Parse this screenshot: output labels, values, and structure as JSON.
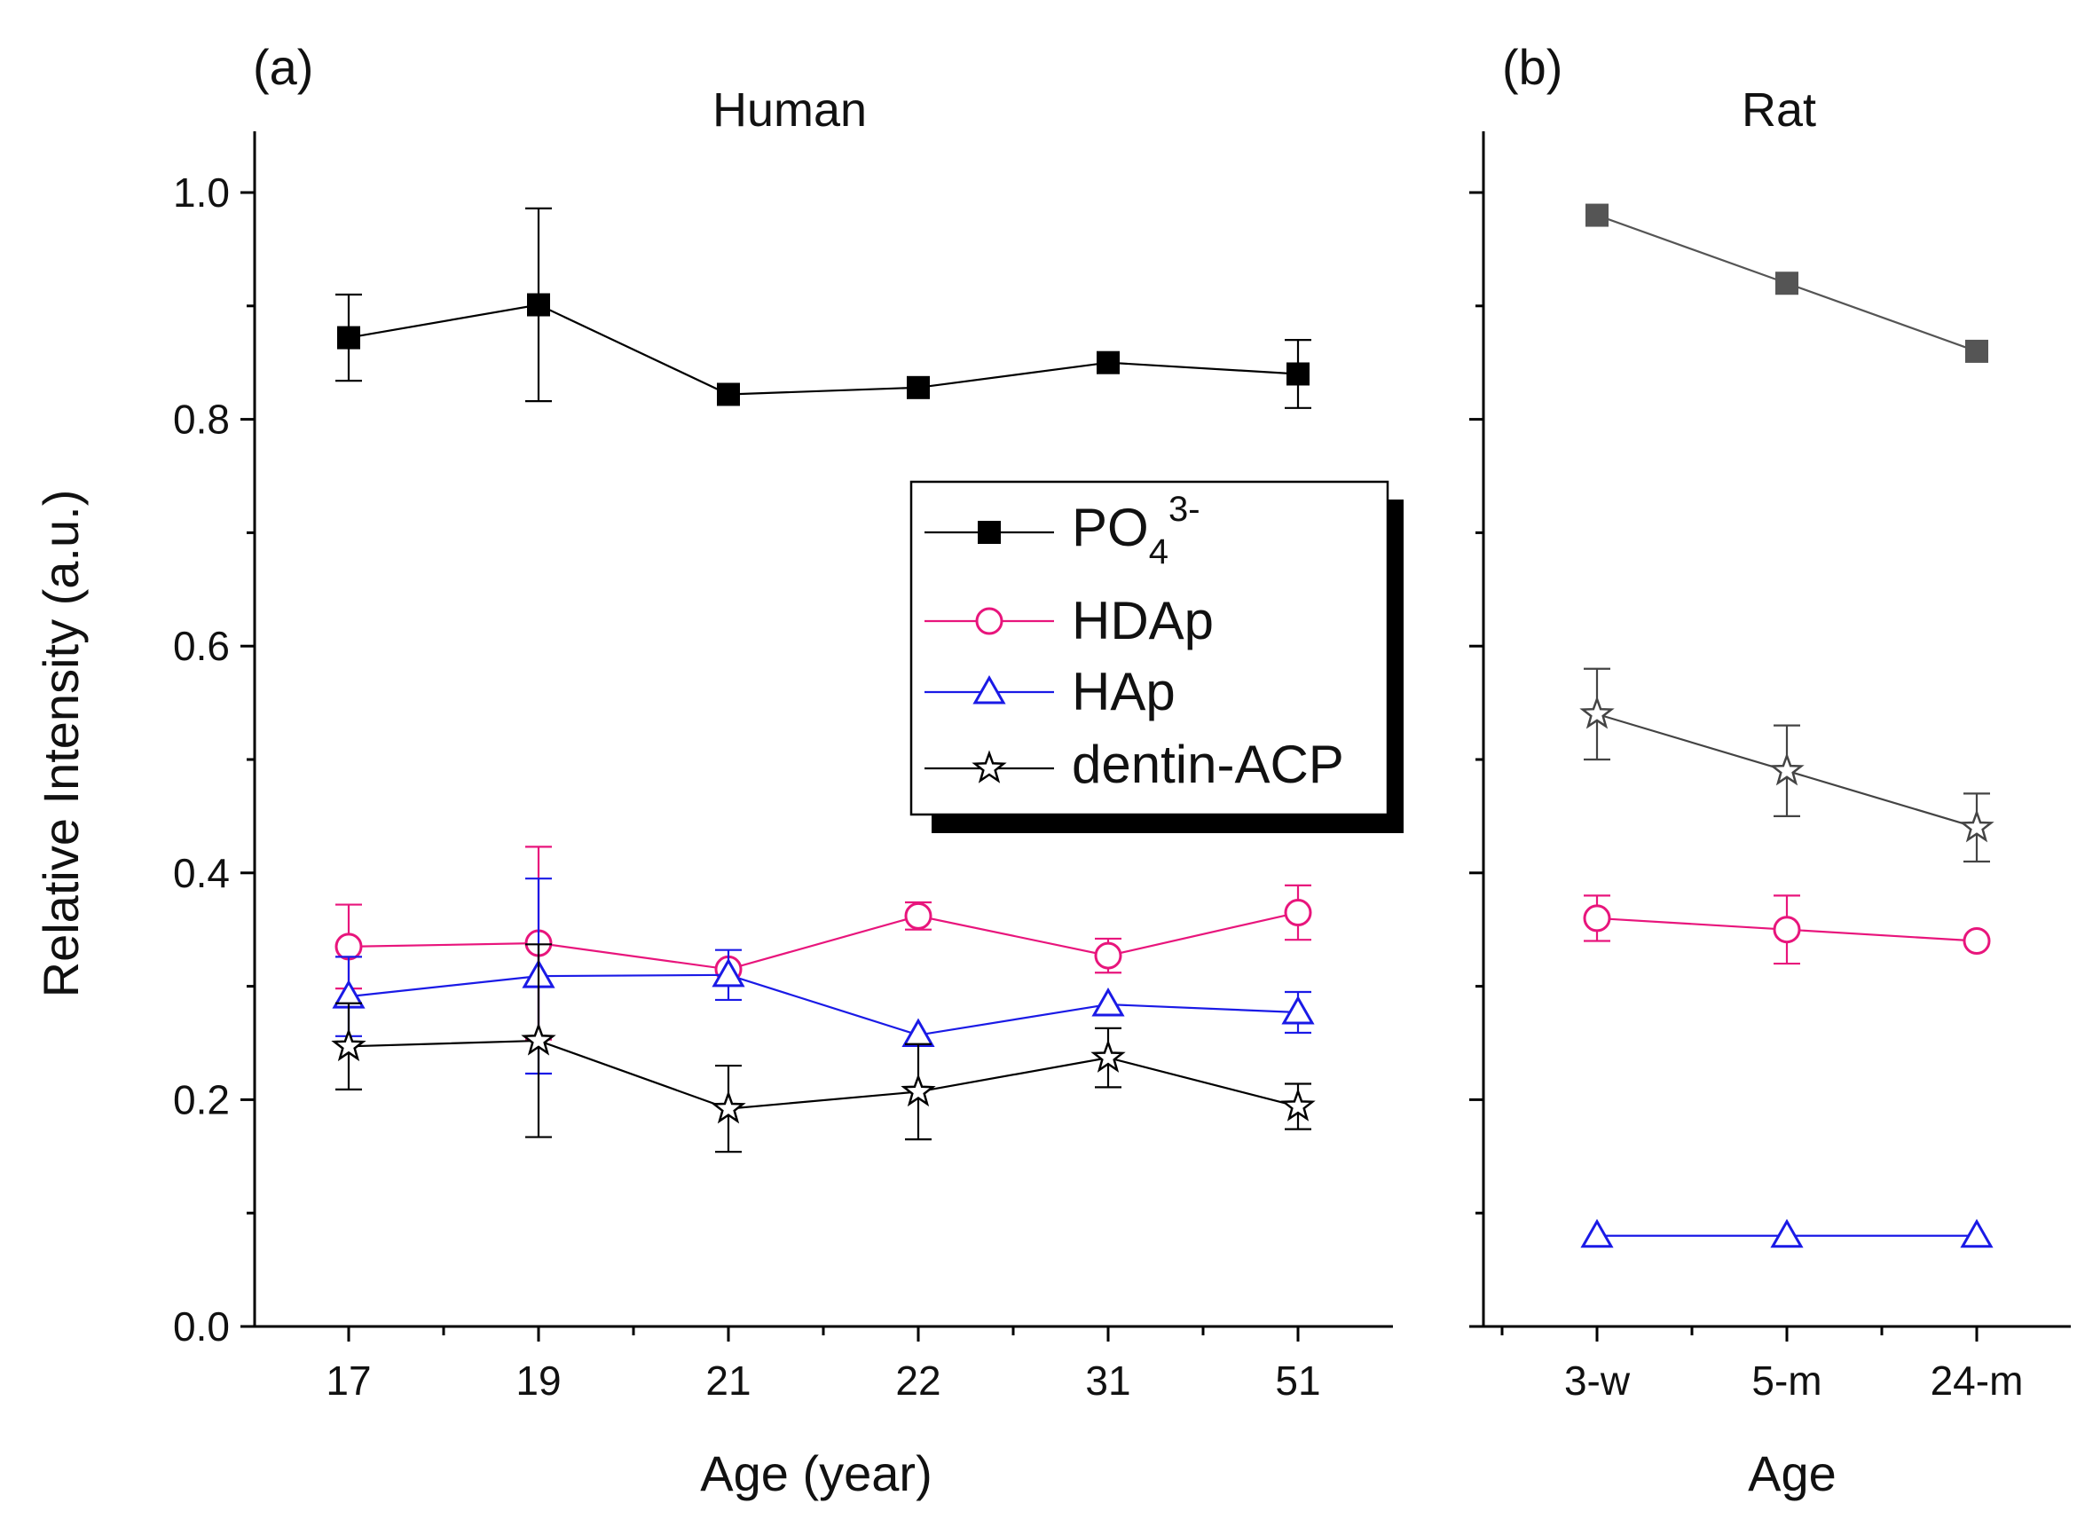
{
  "chart_data": [
    {
      "type": "line",
      "panel_tag": "(a)",
      "title": "Human",
      "xlabel": "Age (year)",
      "ylabel": "Relative Intensity (a.u.)",
      "categories": [
        "17",
        "19",
        "21",
        "22",
        "31",
        "51"
      ],
      "ylim": [
        0,
        1.0
      ],
      "yticks": [
        "0.0",
        "0.2",
        "0.4",
        "0.6",
        "0.8",
        "1.0"
      ],
      "series": [
        {
          "key": "po4",
          "name": "PO43-",
          "color": "#000000",
          "marker": "square-filled",
          "values": [
            0.872,
            0.901,
            0.822,
            0.828,
            0.85,
            0.84
          ],
          "errors": [
            0.038,
            0.085,
            0.0,
            0.0,
            0.0,
            0.03
          ]
        },
        {
          "key": "hdap",
          "name": "HDAp",
          "color": "#e8157c",
          "marker": "circle-open",
          "values": [
            0.335,
            0.338,
            0.315,
            0.362,
            0.327,
            0.365
          ],
          "errors": [
            0.037,
            0.085,
            0.0,
            0.012,
            0.015,
            0.024
          ]
        },
        {
          "key": "hap",
          "name": "HAp",
          "color": "#1a1ae6",
          "marker": "triangle-open",
          "values": [
            0.291,
            0.309,
            0.31,
            0.257,
            0.284,
            0.277
          ],
          "errors": [
            0.035,
            0.086,
            0.022,
            0.0,
            0.0,
            0.018
          ]
        },
        {
          "key": "acp",
          "name": "dentin-ACP",
          "color": "#000000",
          "marker": "star-open",
          "values": [
            0.247,
            0.252,
            0.192,
            0.207,
            0.237,
            0.194
          ],
          "errors": [
            0.038,
            0.085,
            0.038,
            0.042,
            0.026,
            0.02
          ]
        }
      ]
    },
    {
      "type": "line",
      "panel_tag": "(b)",
      "title": "Rat",
      "xlabel": "Age",
      "categories": [
        "3-w",
        "5-m",
        "24-m"
      ],
      "ylim": [
        0,
        1.0
      ],
      "series": [
        {
          "key": "po4",
          "name": "PO43-",
          "color": "#555555",
          "marker": "square-filled",
          "values": [
            0.98,
            0.92,
            0.86
          ],
          "errors": [
            0,
            0,
            0
          ]
        },
        {
          "key": "acp",
          "name": "dentin-ACP",
          "color": "#444444",
          "marker": "star-open",
          "values": [
            0.54,
            0.49,
            0.44
          ],
          "errors": [
            0.04,
            0.04,
            0.03
          ]
        },
        {
          "key": "hdap",
          "name": "HDAp",
          "color": "#e8157c",
          "marker": "circle-open",
          "values": [
            0.36,
            0.35,
            0.34
          ],
          "errors": [
            0.02,
            0.03,
            0.0
          ]
        },
        {
          "key": "hap",
          "name": "HAp",
          "color": "#1a1ae6",
          "marker": "triangle-open",
          "values": [
            0.08,
            0.08,
            0.08
          ],
          "errors": [
            0,
            0,
            0
          ]
        }
      ]
    }
  ],
  "legend": {
    "items": [
      {
        "key": "po4",
        "base": "PO",
        "sub": "4",
        "sup": "3-"
      },
      {
        "key": "hdap",
        "base": "HDAp"
      },
      {
        "key": "hap",
        "base": "HAp"
      },
      {
        "key": "acp",
        "base": "dentin-ACP"
      }
    ]
  }
}
